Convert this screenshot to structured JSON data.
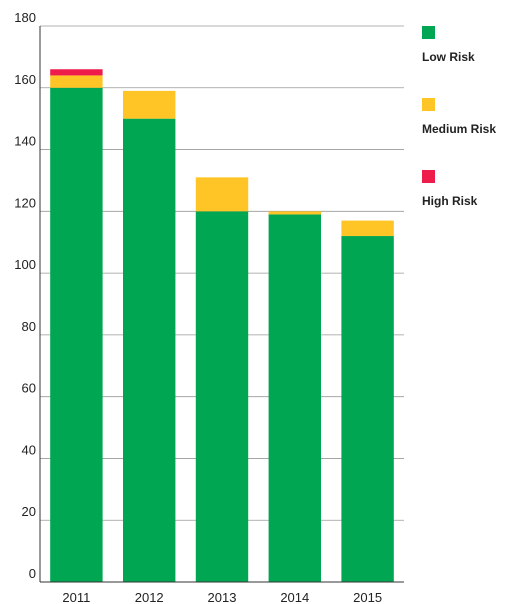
{
  "chart_data": {
    "type": "bar",
    "stacked": true,
    "categories": [
      "2011",
      "2012",
      "2013",
      "2014",
      "2015"
    ],
    "series": [
      {
        "name": "Low Risk",
        "color": "#00a651",
        "values": [
          160,
          150,
          120,
          119,
          112
        ]
      },
      {
        "name": "Medium Risk",
        "color": "#ffc425",
        "values": [
          4,
          9,
          11,
          1,
          5
        ]
      },
      {
        "name": "High Risk",
        "color": "#ed1c4a",
        "values": [
          2,
          0,
          0,
          0,
          0
        ]
      }
    ],
    "title": "",
    "xlabel": "",
    "ylabel": "",
    "ylim": [
      0,
      180
    ],
    "yticks": [
      0,
      20,
      40,
      60,
      80,
      100,
      120,
      140,
      160,
      180
    ],
    "grid": true,
    "legend_position": "right"
  }
}
